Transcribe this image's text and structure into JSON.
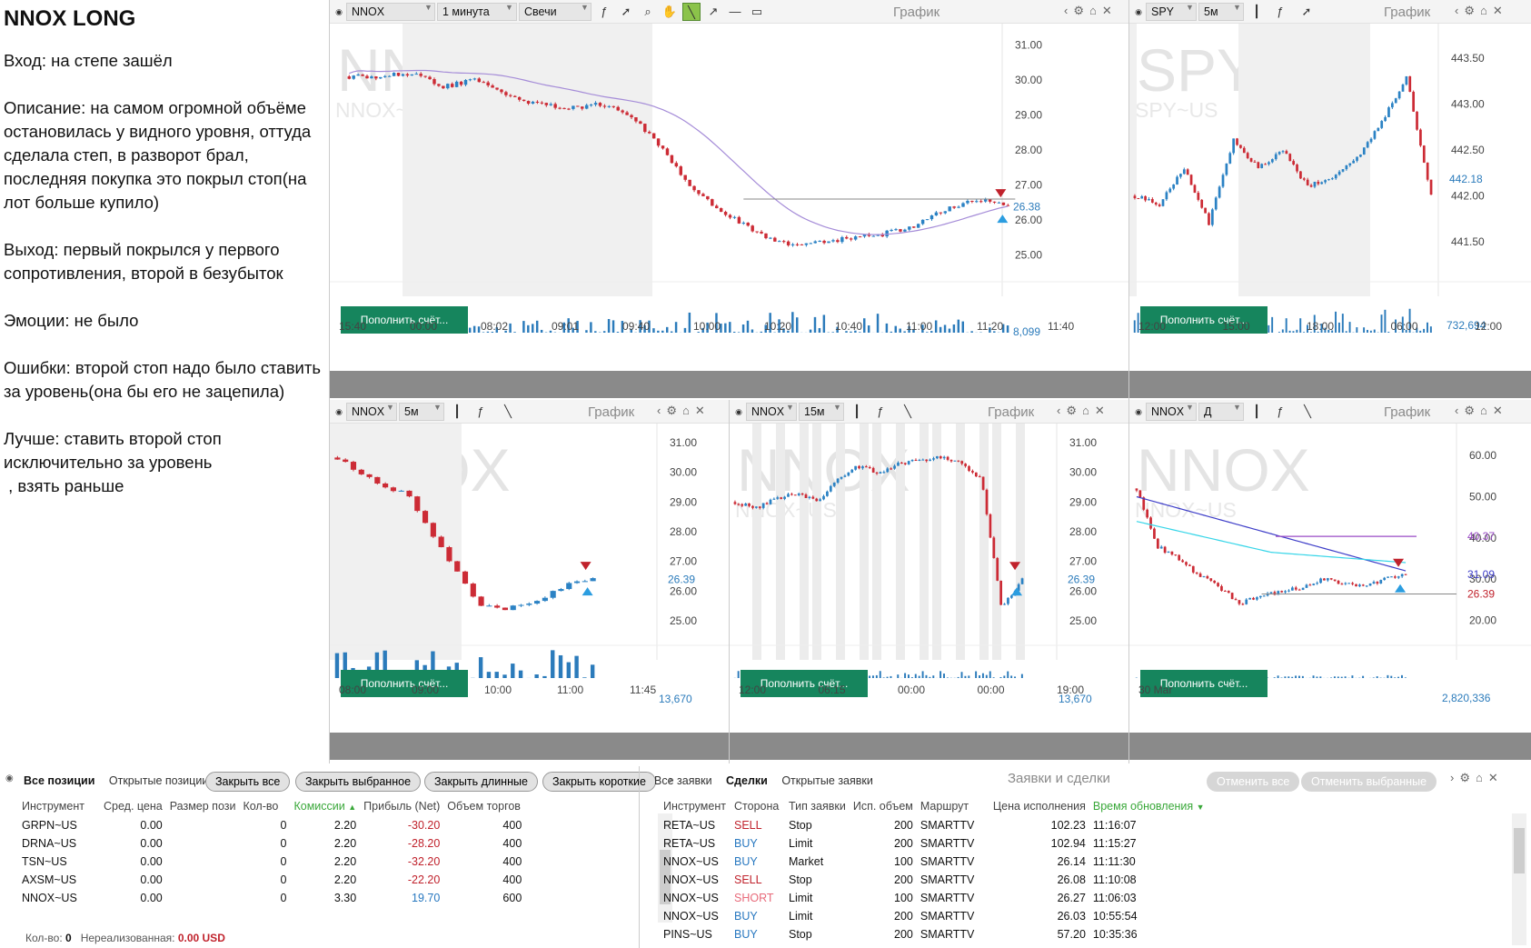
{
  "notes": {
    "title": "NNOX LONG",
    "paragraphs": [
      "Вход: на степе зашёл",
      "Описание: на самом огромной объёме остановилась у видного уровня, оттуда сделала степ, в разворот брал, последняя покупка это покрыл стоп(на лот больше купило)",
      "Выход: первый покрылся у первого сопротивления, второй в безубыток",
      "Эмоции: не было",
      "Ошибки: второй стоп надо было ставить за уровень(она бы его не зацепила)",
      "Лучше: ставить второй стоп исключительно за уровень\n , взять раньше"
    ]
  },
  "common": {
    "graph_title": "График",
    "deposit_label": "Пополнить счёт..."
  },
  "charts": [
    {
      "symbol": "NNOX",
      "interval": "1 минута",
      "style": "Свечи",
      "bg_symbol": "NNOX",
      "bg_sub": "NNOX~US",
      "y_ticks": [
        "31.00",
        "30.00",
        "29.00",
        "28.00",
        "27.00",
        "26.00",
        "25.00"
      ],
      "price_label": "26.38",
      "volume_label": "8,099",
      "x_ticks": [
        "15:40",
        "00:00",
        "08:02",
        "09:01",
        "09:40",
        "10:00",
        "10:20",
        "10:40",
        "11:00",
        "11:20",
        "11:40"
      ]
    },
    {
      "symbol": "SPY",
      "interval": "5м",
      "bg_symbol": "SPY",
      "bg_sub": "SPY~US",
      "y_ticks": [
        "443.50",
        "443.00",
        "442.50",
        "442.00",
        "441.50"
      ],
      "price_label": "442.18",
      "volume_label": "732,694",
      "x_ticks": [
        "12:00",
        "15:00",
        "18:00",
        "06:00",
        "12:00"
      ]
    },
    {
      "symbol": "NNOX",
      "interval": "5м",
      "bg_symbol": "NNOX",
      "bg_sub": "NNOX~US",
      "y_ticks": [
        "31.00",
        "30.00",
        "29.00",
        "28.00",
        "27.00",
        "26.00",
        "25.00"
      ],
      "price_label": "26.39",
      "volume_label": "13,670",
      "x_ticks": [
        "08:00",
        "09:00",
        "10:00",
        "11:00",
        "11:45"
      ]
    },
    {
      "symbol": "NNOX",
      "interval": "15м",
      "bg_symbol": "NNOX",
      "bg_sub": "NNOX~US",
      "y_ticks": [
        "31.00",
        "30.00",
        "29.00",
        "28.00",
        "27.00",
        "26.00",
        "25.00"
      ],
      "price_label": "26.39",
      "volume_label": "13,670",
      "x_ticks": [
        "12:00",
        "06:15",
        "00:00",
        "00:00",
        "19:00"
      ]
    },
    {
      "symbol": "NNOX",
      "interval": "Д",
      "bg_symbol": "NNOX",
      "bg_sub": "NNOX~US",
      "y_ticks": [
        "60.00",
        "50.00",
        "40.00",
        "30.00",
        "20.00"
      ],
      "price_label": "26.39",
      "extra_labels": [
        "40.37",
        "31.09"
      ],
      "volume_label": "2,820,336",
      "x_ticks": [
        "30 Mar"
      ]
    }
  ],
  "positions": {
    "tabs": [
      "Все позиции",
      "Открытые позиции"
    ],
    "buttons": [
      "Закрыть все",
      "Закрыть выбранное",
      "Закрыть длинные",
      "Закрыть короткие"
    ],
    "columns": [
      "Инструмент",
      "Сред. цена",
      "Размер пози",
      "Кол-во",
      "Комиссии",
      "Прибыль (Net)",
      "Объем торгов"
    ],
    "rows": [
      [
        "GRPN~US",
        "0.00",
        "0",
        "2.20",
        "-30.20",
        "400"
      ],
      [
        "DRNA~US",
        "0.00",
        "0",
        "2.20",
        "-28.20",
        "400"
      ],
      [
        "TSN~US",
        "0.00",
        "0",
        "2.20",
        "-32.20",
        "400"
      ],
      [
        "AXSM~US",
        "0.00",
        "0",
        "2.20",
        "-22.20",
        "400"
      ],
      [
        "NNOX~US",
        "0.00",
        "0",
        "3.30",
        "19.70",
        "600"
      ]
    ],
    "footer_qty_label": "Кол-во:",
    "footer_qty": "0",
    "footer_unreal_label": "Нереализованная:",
    "footer_unreal": "0.00 USD"
  },
  "orders": {
    "tabs": [
      "Все заявки",
      "Сделки",
      "Открытые заявки"
    ],
    "title": "Заявки и сделки",
    "buttons": [
      "Отменить все",
      "Отменить выбранные"
    ],
    "columns": [
      "Инструмент",
      "Сторона",
      "Тип заявки",
      "Исп. объем",
      "Маршрут",
      "Цена исполнения",
      "Время обновления"
    ],
    "rows": [
      [
        "RETA~US",
        "SELL",
        "Stop",
        "200",
        "SMARTTV",
        "102.23",
        "11:16:07"
      ],
      [
        "RETA~US",
        "BUY",
        "Limit",
        "200",
        "SMARTTV",
        "102.94",
        "11:15:27"
      ],
      [
        "NNOX~US",
        "BUY",
        "Market",
        "100",
        "SMARTTV",
        "26.14",
        "11:11:30"
      ],
      [
        "NNOX~US",
        "SELL",
        "Stop",
        "200",
        "SMARTTV",
        "26.08",
        "11:10:08"
      ],
      [
        "NNOX~US",
        "SHORT",
        "Limit",
        "100",
        "SMARTTV",
        "26.27",
        "11:06:03"
      ],
      [
        "NNOX~US",
        "BUY",
        "Limit",
        "200",
        "SMARTTV",
        "26.03",
        "10:55:54"
      ],
      [
        "PINS~US",
        "BUY",
        "Stop",
        "200",
        "SMARTTV",
        "57.20",
        "10:35:36"
      ]
    ]
  }
}
